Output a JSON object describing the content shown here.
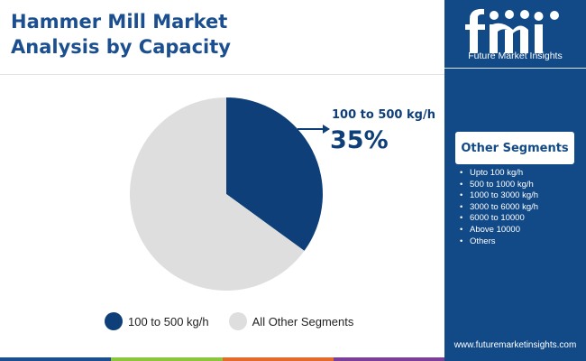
{
  "header": {
    "title_line1": "Hammer Mill Market",
    "title_line2": "Analysis by Capacity"
  },
  "chart_data": {
    "type": "pie",
    "title": "Hammer Mill Market Analysis by Capacity",
    "categories": [
      "100 to 500 kg/h",
      "All Other Segments"
    ],
    "values": [
      35,
      65
    ],
    "unit": "%",
    "colors": [
      "#0f3f78",
      "#dedede"
    ],
    "annotation": {
      "label": "100 to 500 kg/h",
      "value": "35%"
    },
    "legend_placement": "bottom"
  },
  "legend": {
    "items": [
      {
        "label": "100 to 500 kg/h",
        "color": "#0f3f78"
      },
      {
        "label": "All Other Segments",
        "color": "#dedede"
      }
    ]
  },
  "sidebar": {
    "logo_letters": "fmi",
    "logo_text": "Future Market Insights",
    "other_segments_title": "Other Segments",
    "other_segments": [
      "Upto 100 kg/h",
      "500 to 1000 kg/h",
      "1000 to 3000 kg/h",
      "3000 to 6000 kg/h",
      "6000 to 10000",
      "Above 10000",
      "Others"
    ],
    "website": "www.futuremarketinsights.com"
  },
  "colors": {
    "brand_blue": "#124a88",
    "accent_blue": "#0f3f78",
    "footer": [
      "#1b4f8f",
      "#8cc63f",
      "#e46c2a",
      "#7b3f99"
    ]
  }
}
